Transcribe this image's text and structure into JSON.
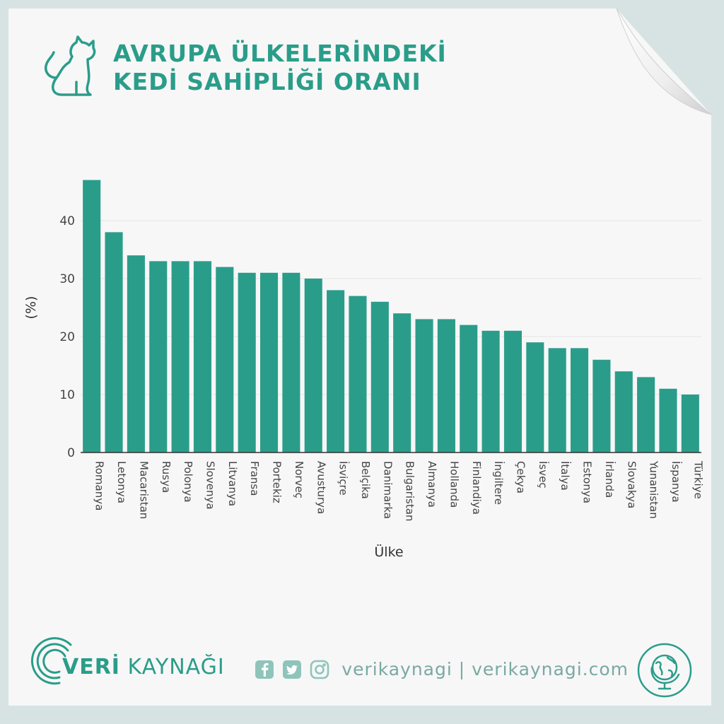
{
  "header": {
    "title_line1": "AVRUPA ÜLKELERİNDEKİ",
    "title_line2": "KEDİ SAHİPLİĞİ ORANI"
  },
  "colors": {
    "accent": "#2a9d8a",
    "bar": "#2a9d8a",
    "muted": "#7aa9a2"
  },
  "chart_data": {
    "type": "bar",
    "categories": [
      "Romanya",
      "Letonya",
      "Macaristan",
      "Rusya",
      "Polonya",
      "Slovenya",
      "Litvanya",
      "Fransa",
      "Portekiz",
      "Norveç",
      "Avusturya",
      "İsviçre",
      "Belçika",
      "Danimarka",
      "Bulgaristan",
      "Almanya",
      "Hollanda",
      "Finlandiya",
      "İngiltere",
      "Çekya",
      "İsveç",
      "İtalya",
      "Estonya",
      "İrlanda",
      "Slovakya",
      "Yunanistan",
      "İspanya",
      "Türkiye"
    ],
    "values": [
      47,
      38,
      34,
      33,
      33,
      33,
      32,
      31,
      31,
      31,
      30,
      28,
      27,
      26,
      24,
      23,
      23,
      22,
      21,
      21,
      19,
      18,
      18,
      16,
      14,
      13,
      11,
      10
    ],
    "xlabel": "Ülke",
    "ylabel": "(%)",
    "yticks": [
      "0",
      "10",
      "20",
      "30",
      "40"
    ],
    "ylim": [
      0,
      50
    ],
    "grid": true
  },
  "footer": {
    "brand_left": "VERİ",
    "brand_right": "KAYNAĞI",
    "social_text": "verikaynagi | verikaynagi.com",
    "icons": [
      "facebook-icon",
      "twitter-icon",
      "instagram-icon",
      "globe-icon",
      "cat-icon"
    ]
  }
}
